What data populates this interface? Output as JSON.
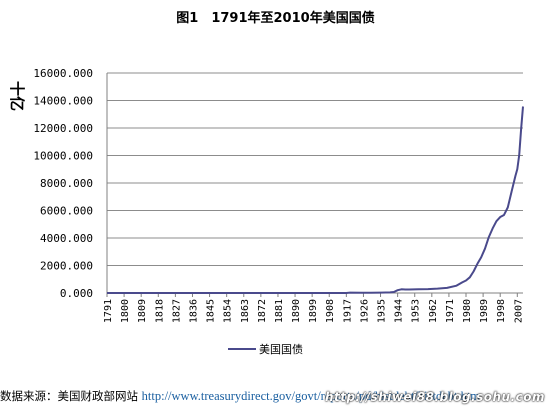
{
  "title": "图1　1791年至2010年美国国债",
  "chart_data": {
    "type": "line",
    "title": "图1　1791年至2010年美国国债",
    "ylabel": "十亿",
    "xlabel": "",
    "ylim": [
      0,
      16000
    ],
    "yticks": [
      "0.000",
      "2000.000",
      "4000.000",
      "6000.000",
      "8000.000",
      "10000.000",
      "12000.000",
      "14000.000",
      "16000.000"
    ],
    "ytick_values": [
      0,
      2000,
      4000,
      6000,
      8000,
      10000,
      12000,
      14000,
      16000
    ],
    "xlim": [
      1791,
      2010
    ],
    "xticks": [
      "1791",
      "1800",
      "1809",
      "1818",
      "1827",
      "1836",
      "1845",
      "1854",
      "1863",
      "1872",
      "1881",
      "1890",
      "1899",
      "1908",
      "1917",
      "1926",
      "1935",
      "1944",
      "1953",
      "1962",
      "1971",
      "1980",
      "1989",
      "1998",
      "2007"
    ],
    "grid": true,
    "legend_position": "bottom",
    "series": [
      {
        "name": "美国国债",
        "color": "#4a4a8c",
        "x": [
          1791,
          1800,
          1810,
          1820,
          1830,
          1840,
          1850,
          1860,
          1863,
          1866,
          1870,
          1880,
          1890,
          1900,
          1910,
          1917,
          1919,
          1925,
          1930,
          1935,
          1940,
          1942,
          1944,
          1946,
          1948,
          1950,
          1955,
          1960,
          1965,
          1970,
          1975,
          1978,
          1980,
          1982,
          1984,
          1986,
          1988,
          1990,
          1992,
          1994,
          1996,
          1998,
          2000,
          2002,
          2004,
          2006,
          2007,
          2008,
          2009,
          2010
        ],
        "values": [
          0.08,
          0.08,
          0.05,
          0.09,
          0.05,
          0.004,
          0.06,
          0.06,
          1.1,
          2.8,
          2.4,
          2.1,
          1.2,
          1.3,
          1.1,
          3.0,
          25.5,
          20.5,
          16.2,
          28.7,
          43.0,
          72.4,
          204.0,
          269.0,
          252.0,
          257.0,
          274.0,
          286.0,
          317.0,
          371.0,
          533.0,
          772.0,
          908.0,
          1142.0,
          1572.0,
          2125.0,
          2602.0,
          3233.0,
          4065.0,
          4693.0,
          5225.0,
          5526.0,
          5674.0,
          6228.0,
          7379.0,
          8507.0,
          9008.0,
          10025.0,
          11910.0,
          13562.0
        ]
      }
    ]
  },
  "source": {
    "prefix": "数据来源：美国财政部网站 ",
    "url": "http://www.treasurydirect.gov/govt/reports/pd/histdebt/histdebt.htm"
  },
  "watermark": "http://shiwei88.blog.sohu.com"
}
